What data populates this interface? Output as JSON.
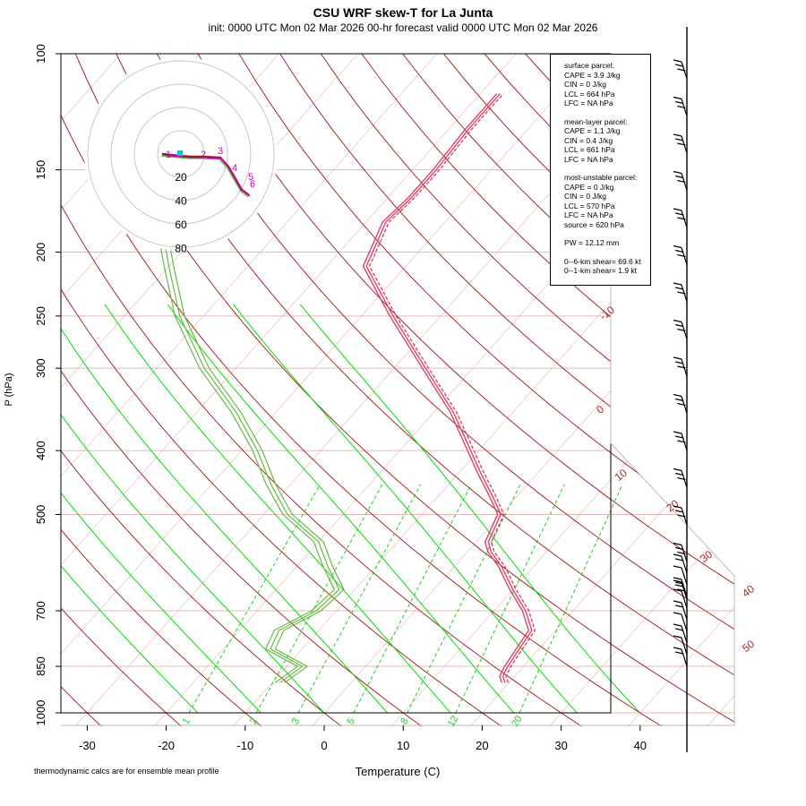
{
  "header": {
    "title": "CSU WRF skew-T for La Junta",
    "subtitle": "init: 0000 UTC Mon 02 Mar 2026     00-hr forecast valid 0000 UTC Mon 02 Mar 2026"
  },
  "footnote": "thermodynamic calcs are for ensemble mean profile",
  "info": {
    "surface": [
      "surface parcel:",
      "CAPE = 3.9 J/kg",
      "CIN = 0 J/kg",
      "LCL = 664 hPa",
      "LFC = NA hPa"
    ],
    "mean_layer": [
      "mean-layer parcel:",
      "CAPE = 1.1 J/kg",
      "CIN = 0.4 J/kg",
      "LCL = 661 hPa",
      "LFC = NA hPa"
    ],
    "most_unstable": [
      "most-unstable parcel:",
      "CAPE = 0 J/kg",
      "CIN = 0 J/kg",
      "LCL = 570 hPa",
      "LFC = NA hPa",
      "source = 620 hPa"
    ],
    "pw": "PW =   12.12 mm",
    "shear": [
      "0--6-km shear= 69.6 kt",
      "0--1-km shear= 1.9 kt"
    ]
  },
  "colors": {
    "dry_adiabat": "#a52a2a",
    "moist_adiabat": "#00dd00",
    "mixing_ratio": "#22cc22",
    "isotherm": "#e8a0a0",
    "temperature": "#dd4466",
    "dewpoint": "#66bb44",
    "hodograph": "#cc00cc",
    "hodo_ring": "#c8c8c8"
  },
  "chart_data": {
    "type": "skew-T log-P diagram",
    "xlabel": "Temperature (C)",
    "ylabel": "P (hPa)",
    "x_ticks": [
      -30,
      -20,
      -10,
      0,
      10,
      20,
      30,
      40
    ],
    "y_ticks": [
      100,
      150,
      200,
      250,
      300,
      400,
      500,
      700,
      850,
      1000
    ],
    "ylim": [
      1000,
      100
    ],
    "xlim": [
      -33,
      45
    ],
    "isotherm_labels": [
      -10,
      0,
      10,
      20,
      30,
      40,
      50
    ],
    "mixing_ratio_labels": [
      1,
      2,
      3,
      5,
      8,
      12,
      20
    ],
    "temperature_profile": [
      {
        "p": 900,
        "t": 19.5
      },
      {
        "p": 880,
        "t": 18.5
      },
      {
        "p": 850,
        "t": 18.0
      },
      {
        "p": 800,
        "t": 17.5
      },
      {
        "p": 750,
        "t": 17.0
      },
      {
        "p": 700,
        "t": 14.0
      },
      {
        "p": 650,
        "t": 10.0
      },
      {
        "p": 600,
        "t": 6.0
      },
      {
        "p": 570,
        "t": 3.0
      },
      {
        "p": 550,
        "t": 1.5
      },
      {
        "p": 500,
        "t": 0.0
      },
      {
        "p": 470,
        "t": -3.0
      },
      {
        "p": 430,
        "t": -7.5
      },
      {
        "p": 400,
        "t": -11.0
      },
      {
        "p": 350,
        "t": -17.5
      },
      {
        "p": 300,
        "t": -26.0
      },
      {
        "p": 250,
        "t": -36.0
      },
      {
        "p": 210,
        "t": -45.0
      },
      {
        "p": 180,
        "t": -47.5
      },
      {
        "p": 165,
        "t": -47.0
      },
      {
        "p": 150,
        "t": -47.0
      },
      {
        "p": 130,
        "t": -47.5
      },
      {
        "p": 115,
        "t": -47.5
      }
    ],
    "dewpoint_profile": [
      {
        "p": 900,
        "t": -9.0
      },
      {
        "p": 850,
        "t": -8.0
      },
      {
        "p": 800,
        "t": -14.0
      },
      {
        "p": 750,
        "t": -15.0
      },
      {
        "p": 700,
        "t": -12.5
      },
      {
        "p": 650,
        "t": -12.0
      },
      {
        "p": 600,
        "t": -16.0
      },
      {
        "p": 550,
        "t": -20.0
      },
      {
        "p": 500,
        "t": -27.0
      },
      {
        "p": 450,
        "t": -32.5
      },
      {
        "p": 400,
        "t": -38.0
      },
      {
        "p": 350,
        "t": -45.0
      },
      {
        "p": 300,
        "t": -54.0
      },
      {
        "p": 250,
        "t": -63.0
      },
      {
        "p": 210,
        "t": -70.0
      },
      {
        "p": 180,
        "t": -76.0
      }
    ],
    "hodograph": {
      "ring_labels": [
        20,
        40,
        60,
        80
      ],
      "height_labels": [
        "1",
        "2",
        "3",
        "4",
        "5",
        "6"
      ]
    },
    "wind_barbs": {
      "count": 24
    }
  }
}
